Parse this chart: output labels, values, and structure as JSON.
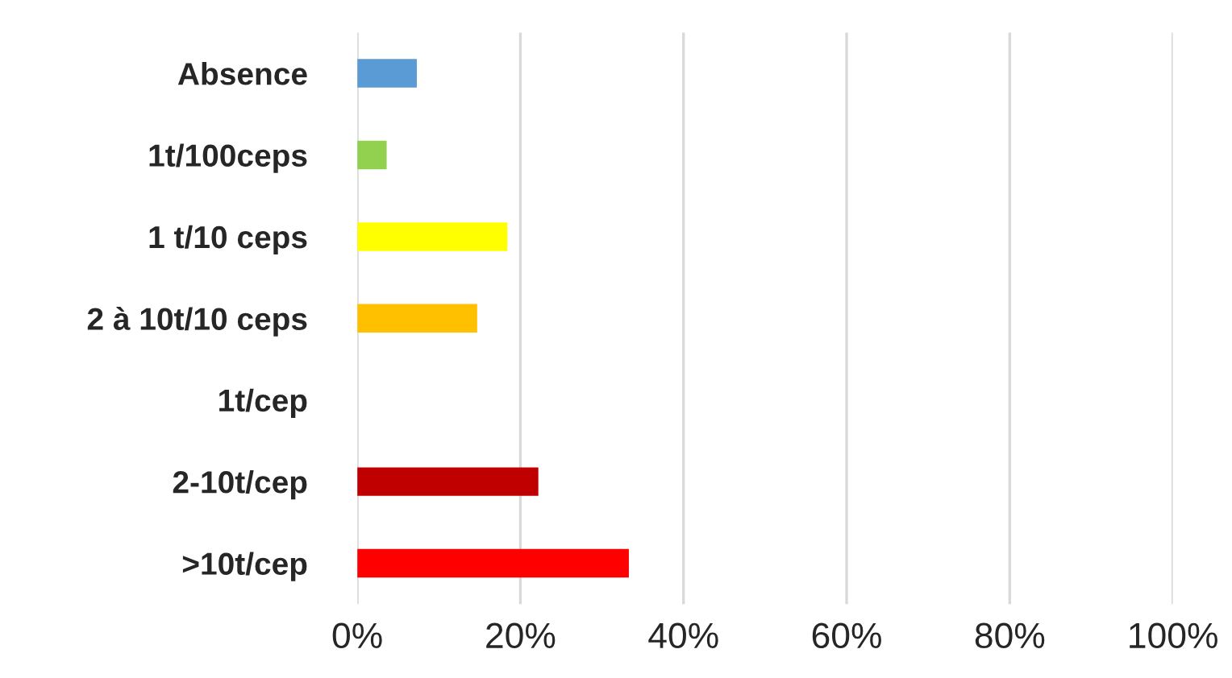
{
  "chart_data": {
    "type": "bar",
    "orientation": "horizontal",
    "categories": [
      "Absence",
      "1t/100ceps",
      "1 t/10 ceps",
      "2 à 10t/10 ceps",
      "1t/cep",
      "2-10t/cep",
      ">10t/cep"
    ],
    "values": [
      7.3,
      3.6,
      18.4,
      14.7,
      0,
      22.2,
      33.3
    ],
    "colors": [
      "#5b9bd5",
      "#92d050",
      "#ffff00",
      "#ffc000",
      null,
      "#c00000",
      "#ff0000"
    ],
    "xlim": [
      0,
      100
    ],
    "xticks": [
      {
        "value": 0,
        "label": "0%"
      },
      {
        "value": 20,
        "label": "20%"
      },
      {
        "value": 40,
        "label": "40%"
      },
      {
        "value": 60,
        "label": "60%"
      },
      {
        "value": 80,
        "label": "80%"
      },
      {
        "value": 100,
        "label": "100%"
      }
    ],
    "grid": "x",
    "legend": false
  }
}
